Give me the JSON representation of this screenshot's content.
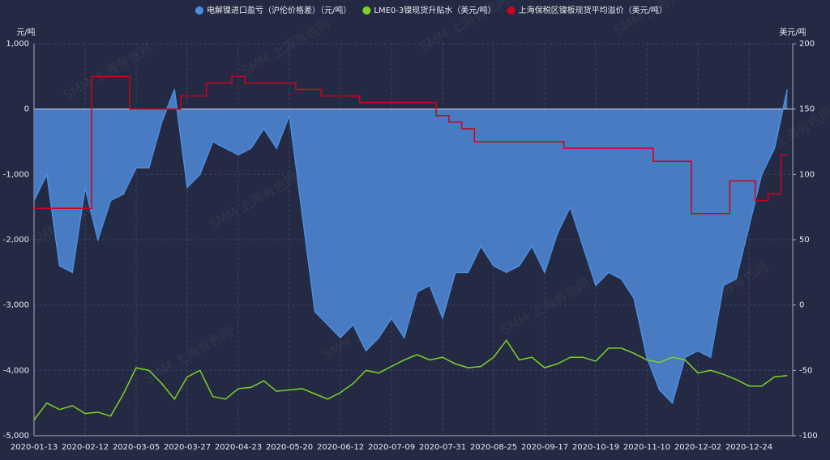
{
  "chart_data": {
    "type": "line",
    "y_label": "元/吨",
    "y2_label": "美元/吨",
    "watermark": "SMM 上海有色网",
    "categories": [
      "2020-01-13",
      null,
      null,
      null,
      "2020-02-12",
      null,
      null,
      null,
      "2020-03-05",
      null,
      null,
      null,
      "2020-03-27",
      null,
      null,
      null,
      "2020-04-23",
      null,
      null,
      null,
      "2020-05-20",
      null,
      null,
      null,
      "2020-06-12",
      null,
      null,
      null,
      "2020-07-09",
      null,
      null,
      null,
      "2020-07-31",
      null,
      null,
      null,
      "2020-08-25",
      null,
      null,
      null,
      "2020-09-17",
      null,
      null,
      null,
      "2020-10-19",
      null,
      null,
      null,
      "2020-11-10",
      null,
      null,
      null,
      "2020-12-02",
      null,
      null,
      null,
      "2020-12-24",
      null,
      null,
      null
    ],
    "series": [
      {
        "name": "电解镍进口盈亏（沪伦价格差）（元/吨）",
        "color": "#4a90e2",
        "area": true,
        "values": [
          -1400,
          -1000,
          -2400,
          -2500,
          -1200,
          -2000,
          -1400,
          -1300,
          -900,
          -900,
          -200,
          300,
          -1200,
          -1000,
          -500,
          -600,
          -700,
          -600,
          -300,
          -600,
          -100,
          -1600,
          -3100,
          -3300,
          -3500,
          -3300,
          -3700,
          -3500,
          -3200,
          -3500,
          -2800,
          -2700,
          -3200,
          -2500,
          -2500,
          -2100,
          -2400,
          -2500,
          -2400,
          -2100,
          -2500,
          -1900,
          -1500,
          -2100,
          -2700,
          -2500,
          -2600,
          -2900,
          -3800,
          -4300,
          -4500,
          -3800,
          -3700,
          -3800,
          -2700,
          -2600,
          -1800,
          -1000,
          -600,
          300
        ]
      },
      {
        "name": "LME0-3镍现货升贴水（美元/吨）",
        "color": "#7ed321",
        "axis": "y2",
        "values": [
          -88,
          -75,
          -80,
          -77,
          -83,
          -82,
          -85,
          -68,
          -48,
          -50,
          -60,
          -72,
          -55,
          -50,
          -70,
          -72,
          -64,
          -63,
          -58,
          -66,
          -65,
          -64,
          -68,
          -72,
          -67,
          -60,
          -50,
          -52,
          -47,
          -42,
          -38,
          -42,
          -40,
          -45,
          -48,
          -47,
          -40,
          -27,
          -42,
          -40,
          -48,
          -45,
          -40,
          -40,
          -43,
          -33,
          -33,
          -37,
          -42,
          -44,
          -40,
          -42,
          -52,
          -50,
          -53,
          -57,
          -62,
          -62,
          -55,
          -54
        ]
      },
      {
        "name": "上海保税区镍板现货平均溢价（美元/吨）",
        "color": "#d0021b",
        "axis": "y2",
        "step": true,
        "values": [
          74,
          74,
          74,
          74,
          74,
          175,
          175,
          175,
          150,
          150,
          150,
          150,
          160,
          160,
          170,
          170,
          175,
          170,
          170,
          170,
          170,
          165,
          165,
          160,
          160,
          160,
          155,
          155,
          155,
          155,
          155,
          155,
          145,
          140,
          135,
          125,
          125,
          125,
          125,
          125,
          125,
          125,
          120,
          120,
          120,
          120,
          120,
          120,
          120,
          110,
          110,
          110,
          70,
          70,
          70,
          95,
          95,
          80,
          85,
          115
        ]
      }
    ],
    "ylim": [
      -5000,
      1000
    ],
    "yticks": [
      {
        "value": -5000,
        "label": "-5,000"
      },
      {
        "value": -4000,
        "label": "-4,000"
      },
      {
        "value": -3000,
        "label": "-3,000"
      },
      {
        "value": -2000,
        "label": "-2,000"
      },
      {
        "value": -1000,
        "label": "-1,000"
      },
      0,
      {
        "value": 1000,
        "label": "1,000"
      }
    ],
    "y2lim": [
      -100,
      200
    ],
    "y2ticks": [
      -100,
      -50,
      0,
      50,
      100,
      150,
      200
    ],
    "grid": true,
    "legend": "top"
  }
}
